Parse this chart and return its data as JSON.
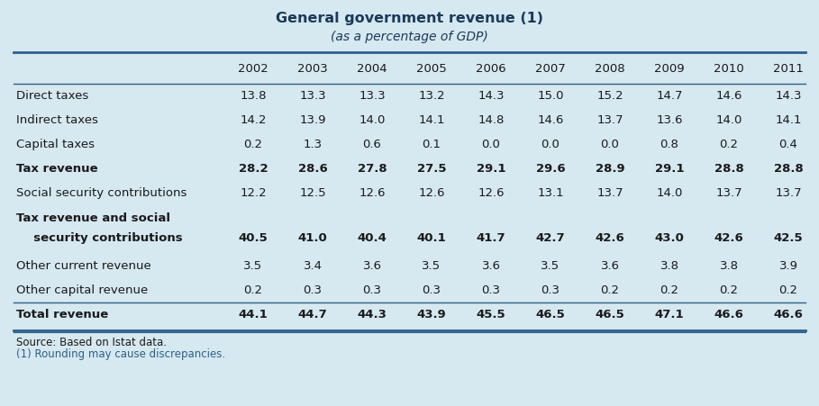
{
  "title_line1": "General government revenue (1)",
  "title_line2": "(as a percentage of GDP)",
  "years": [
    "2002",
    "2003",
    "2004",
    "2005",
    "2006",
    "2007",
    "2008",
    "2009",
    "2010",
    "2011"
  ],
  "rows": [
    {
      "label": "Direct taxes",
      "label2": null,
      "bold": false,
      "values": [
        "13.8",
        "13.3",
        "13.3",
        "13.2",
        "14.3",
        "15.0",
        "15.2",
        "14.7",
        "14.6",
        "14.3"
      ]
    },
    {
      "label": "Indirect taxes",
      "label2": null,
      "bold": false,
      "values": [
        "14.2",
        "13.9",
        "14.0",
        "14.1",
        "14.8",
        "14.6",
        "13.7",
        "13.6",
        "14.0",
        "14.1"
      ]
    },
    {
      "label": "Capital taxes",
      "label2": null,
      "bold": false,
      "values": [
        "0.2",
        "1.3",
        "0.6",
        "0.1",
        "0.0",
        "0.0",
        "0.0",
        "0.8",
        "0.2",
        "0.4"
      ]
    },
    {
      "label": "Tax revenue",
      "label2": null,
      "bold": true,
      "values": [
        "28.2",
        "28.6",
        "27.8",
        "27.5",
        "29.1",
        "29.6",
        "28.9",
        "29.1",
        "28.8",
        "28.8"
      ]
    },
    {
      "label": "Social security contributions",
      "label2": null,
      "bold": false,
      "values": [
        "12.2",
        "12.5",
        "12.6",
        "12.6",
        "12.6",
        "13.1",
        "13.7",
        "14.0",
        "13.7",
        "13.7"
      ]
    },
    {
      "label": "Tax revenue and social",
      "label2": "  security contributions",
      "bold": true,
      "values": [
        "40.5",
        "41.0",
        "40.4",
        "40.1",
        "41.7",
        "42.7",
        "42.6",
        "43.0",
        "42.6",
        "42.5"
      ]
    },
    {
      "label": "Other current revenue",
      "label2": null,
      "bold": false,
      "values": [
        "3.5",
        "3.4",
        "3.6",
        "3.5",
        "3.6",
        "3.5",
        "3.6",
        "3.8",
        "3.8",
        "3.9"
      ]
    },
    {
      "label": "Other capital revenue",
      "label2": null,
      "bold": false,
      "values": [
        "0.2",
        "0.3",
        "0.3",
        "0.3",
        "0.3",
        "0.3",
        "0.2",
        "0.2",
        "0.2",
        "0.2"
      ]
    },
    {
      "label": "Total revenue",
      "label2": null,
      "bold": true,
      "values": [
        "44.1",
        "44.7",
        "44.3",
        "43.9",
        "45.5",
        "46.5",
        "46.5",
        "47.1",
        "46.6",
        "46.6"
      ]
    }
  ],
  "footnote1": "Source: Based on Istat data.",
  "footnote2": "(1) Rounding may cause discrepancies.",
  "bg_color": "#d6e8f0",
  "line_color": "#2e5f8a",
  "text_color": "#1a1a1a",
  "bold_color": "#1a3a5a",
  "footnote2_color": "#2e5f8a",
  "title_fontsize": 11.5,
  "subtitle_fontsize": 10,
  "header_fontsize": 9.5,
  "cell_fontsize": 9.5,
  "footnote_fontsize": 8.5
}
